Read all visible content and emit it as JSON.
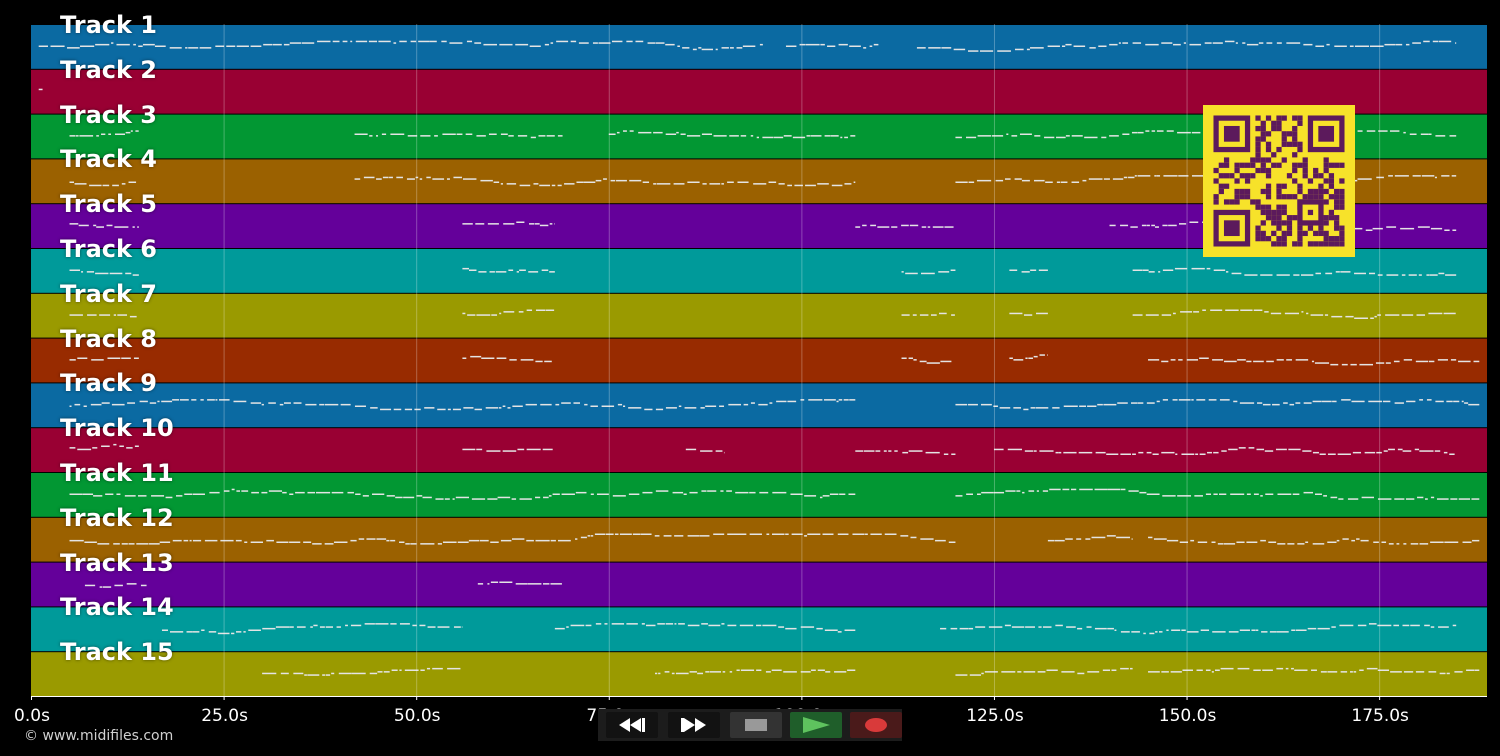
{
  "colors": {
    "background": "#000000",
    "track_colors": [
      "#0b6aa2",
      "#990033",
      "#029733",
      "#9b6100",
      "#64009a",
      "#009a9a",
      "#9a9a00",
      "#982b00"
    ],
    "note": "#e4e4e4",
    "qr_fg": "#5c1a5c",
    "qr_bg": "#f7e22a",
    "record": "#d93a3a",
    "play": "#5ec35e"
  },
  "tracks": [
    {
      "label": "Track 1",
      "activity": [
        [
          1,
          95
        ],
        [
          98,
          110
        ],
        [
          115,
          185
        ]
      ]
    },
    {
      "label": "Track 2",
      "activity": [
        [
          1,
          1.5
        ]
      ]
    },
    {
      "label": "Track 3",
      "activity": [
        [
          5,
          14
        ],
        [
          42,
          69
        ],
        [
          75,
          107
        ],
        [
          120,
          185
        ]
      ]
    },
    {
      "label": "Track 4",
      "activity": [
        [
          5,
          14
        ],
        [
          42,
          107
        ],
        [
          120,
          185
        ]
      ]
    },
    {
      "label": "Track 5",
      "activity": [
        [
          5,
          14
        ],
        [
          56,
          68
        ],
        [
          107,
          120
        ],
        [
          140,
          185
        ]
      ]
    },
    {
      "label": "Track 6",
      "activity": [
        [
          5,
          14
        ],
        [
          56,
          68
        ],
        [
          113,
          120
        ],
        [
          127,
          132
        ],
        [
          143,
          185
        ]
      ]
    },
    {
      "label": "Track 7",
      "activity": [
        [
          5,
          14
        ],
        [
          56,
          68
        ],
        [
          113,
          120
        ],
        [
          127,
          132
        ],
        [
          143,
          185
        ]
      ]
    },
    {
      "label": "Track 8",
      "activity": [
        [
          5,
          14
        ],
        [
          56,
          68
        ],
        [
          113,
          120
        ],
        [
          127,
          132
        ],
        [
          145,
          188
        ]
      ]
    },
    {
      "label": "Track 9",
      "activity": [
        [
          5,
          107
        ],
        [
          120,
          188
        ]
      ]
    },
    {
      "label": "Track 10",
      "activity": [
        [
          5,
          14
        ],
        [
          56,
          68
        ],
        [
          85,
          90
        ],
        [
          107,
          120
        ],
        [
          125,
          185
        ]
      ]
    },
    {
      "label": "Track 11",
      "activity": [
        [
          5,
          107
        ],
        [
          120,
          188
        ]
      ]
    },
    {
      "label": "Track 12",
      "activity": [
        [
          5,
          120
        ],
        [
          132,
          143
        ],
        [
          145,
          188
        ]
      ]
    },
    {
      "label": "Track 13",
      "activity": [
        [
          7,
          15
        ],
        [
          58,
          69
        ]
      ]
    },
    {
      "label": "Track 14",
      "activity": [
        [
          17,
          56
        ],
        [
          68,
          107
        ],
        [
          118,
          185
        ]
      ]
    },
    {
      "label": "Track 15",
      "activity": [
        [
          30,
          56
        ],
        [
          81,
          107
        ],
        [
          120,
          143
        ],
        [
          145,
          188
        ]
      ]
    }
  ],
  "timeline": {
    "range_seconds": [
      0,
      189
    ],
    "ticks": [
      {
        "value": 0,
        "label": "0.0s"
      },
      {
        "value": 25,
        "label": "25.0s"
      },
      {
        "value": 50,
        "label": "50.0s"
      },
      {
        "value": 75,
        "label": "75.0s"
      },
      {
        "value": 100,
        "label": "100.0s"
      },
      {
        "value": 125,
        "label": "125.0s"
      },
      {
        "value": 150,
        "label": "150.0s"
      },
      {
        "value": 175,
        "label": "175.0s"
      }
    ]
  },
  "credit": "© www.midifiles.com",
  "transport": {
    "buttons": [
      {
        "name": "rewind-button",
        "icon": "rewind-icon"
      },
      {
        "name": "fast-forward-button",
        "icon": "fast-forward-icon"
      },
      {
        "name": "stop-button",
        "icon": "stop-icon"
      },
      {
        "name": "play-button",
        "icon": "play-icon"
      },
      {
        "name": "record-button",
        "icon": "record-icon"
      }
    ]
  },
  "qr_code": {
    "icon": "qr-code-icon"
  }
}
